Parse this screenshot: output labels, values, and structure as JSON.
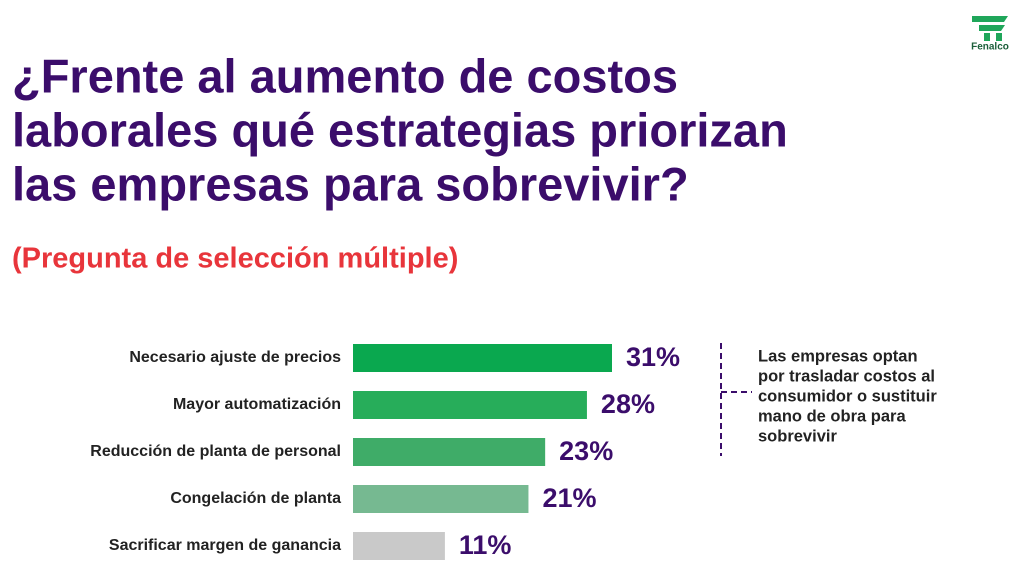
{
  "logo": "Fenalco",
  "chart_data": {
    "type": "bar",
    "orientation": "horizontal",
    "title": [
      "¿Frente al aumento de costos",
      "laborales qué estrategias priorizan",
      "las empresas para sobrevivir?"
    ],
    "subtitle": "(Pregunta de selección múltiple)",
    "categories": [
      "Necesario ajuste de precios",
      "Mayor automatización",
      "Reducción de planta de personal",
      "Congelación de planta",
      "Sacrificar margen de ganancia"
    ],
    "values": [
      31,
      28,
      23,
      21,
      11
    ],
    "value_labels": [
      "31%",
      "28%",
      "23%",
      "21%",
      "11%"
    ],
    "colors": [
      "#0aa84f",
      "#27ad5a",
      "#3fac68",
      "#76b991",
      "#c9c9c9"
    ],
    "annotation": [
      "Las empresas optan",
      "por trasladar costos al",
      "consumidor o sustituir",
      "mano de obra para",
      "sobrevivir"
    ]
  }
}
